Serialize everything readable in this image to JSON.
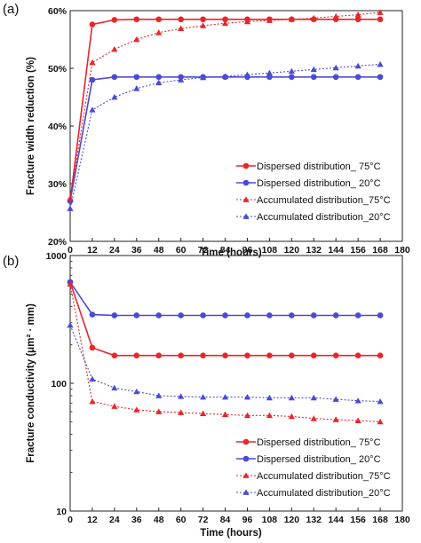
{
  "panels": [
    {
      "label": "(a)",
      "chart_data": {
        "type": "line",
        "xlabel": "Time (hours)",
        "ylabel": "Fracture width reduction (%)",
        "xlim": [
          0,
          180
        ],
        "xticks": [
          0,
          12,
          24,
          36,
          48,
          60,
          72,
          84,
          96,
          108,
          120,
          132,
          144,
          156,
          168,
          180
        ],
        "xtick_labels": [
          "0",
          "12",
          "24",
          "36",
          "48",
          "60",
          "72",
          "84",
          "96",
          "108",
          "120",
          "132",
          "144",
          "156",
          "168",
          "180"
        ],
        "ylim": [
          20,
          60
        ],
        "yscale": "linear",
        "yticks": [
          20,
          30,
          40,
          50,
          60
        ],
        "ytick_labels": [
          "20%",
          "30%",
          "40%",
          "50%",
          "60%"
        ],
        "grid": false,
        "legend_position": "bottom-right",
        "x": [
          0,
          12,
          24,
          36,
          48,
          60,
          72,
          84,
          96,
          108,
          120,
          132,
          144,
          156,
          168
        ],
        "series": [
          {
            "name": "Dispersed distribution_ 75°C",
            "color": "#e8262a",
            "style": "solid",
            "marker": "circle",
            "values": [
              27.0,
              57.6,
              58.4,
              58.5,
              58.5,
              58.5,
              58.5,
              58.5,
              58.5,
              58.5,
              58.5,
              58.5,
              58.5,
              58.5,
              58.5
            ]
          },
          {
            "name": "Dispersed distribution_ 20°C",
            "color": "#4a4ad6",
            "style": "solid",
            "marker": "circle",
            "values": [
              27.0,
              48.0,
              48.5,
              48.5,
              48.5,
              48.5,
              48.5,
              48.5,
              48.5,
              48.5,
              48.5,
              48.5,
              48.5,
              48.5,
              48.5
            ]
          },
          {
            "name": "Accumulated distribution_75°C",
            "color": "#e8262a",
            "style": "dotted",
            "marker": "triangle",
            "values": [
              27.5,
              51.0,
              53.3,
              55.0,
              56.2,
              56.9,
              57.4,
              57.8,
              58.1,
              58.3,
              58.5,
              58.7,
              59.0,
              59.3,
              59.7
            ]
          },
          {
            "name": "Accumulated distribution_20°C",
            "color": "#4a4ad6",
            "style": "dotted",
            "marker": "triangle",
            "values": [
              25.7,
              42.8,
              45.0,
              46.5,
              47.5,
              48.0,
              48.4,
              48.6,
              48.9,
              49.2,
              49.5,
              49.8,
              50.1,
              50.4,
              50.7
            ]
          }
        ]
      }
    },
    {
      "label": "(b)",
      "chart_data": {
        "type": "line",
        "xlabel": "Time (hours)",
        "ylabel": "Fracture conductivity (μm² · mm)",
        "xlim": [
          0,
          180
        ],
        "xticks": [
          0,
          12,
          24,
          36,
          48,
          60,
          72,
          84,
          96,
          108,
          120,
          132,
          144,
          156,
          168,
          180
        ],
        "xtick_labels": [
          "0",
          "12",
          "24",
          "36",
          "48",
          "60",
          "72",
          "84",
          "96",
          "108",
          "120",
          "132",
          "144",
          "156",
          "168",
          "180"
        ],
        "ylim": [
          10,
          1000
        ],
        "yscale": "log",
        "yticks": [
          10,
          100,
          1000
        ],
        "ytick_labels": [
          "10",
          "100",
          "1000"
        ],
        "grid": false,
        "legend_position": "bottom-right",
        "x": [
          0,
          12,
          24,
          36,
          48,
          60,
          72,
          84,
          96,
          108,
          120,
          132,
          144,
          156,
          168
        ],
        "series": [
          {
            "name": "Dispersed distribution_ 75°C",
            "color": "#e8262a",
            "style": "solid",
            "marker": "circle",
            "values": [
              620,
              190,
              165,
              165,
              165,
              165,
              165,
              165,
              165,
              165,
              165,
              165,
              165,
              165,
              165
            ]
          },
          {
            "name": "Dispersed distribution_ 20°C",
            "color": "#4a4ad6",
            "style": "solid",
            "marker": "circle",
            "values": [
              620,
              345,
              340,
              340,
              340,
              340,
              340,
              340,
              340,
              340,
              340,
              340,
              340,
              340,
              340
            ]
          },
          {
            "name": "Accumulated distribution_75°C",
            "color": "#e8262a",
            "style": "dotted",
            "marker": "triangle",
            "values": [
              600,
              72,
              66,
              62,
              60,
              59,
              58,
              57,
              56,
              56,
              55,
              53,
              52,
              51,
              50
            ]
          },
          {
            "name": "Accumulated distribution_20°C",
            "color": "#4a4ad6",
            "style": "dotted",
            "marker": "triangle",
            "values": [
              285,
              108,
              92,
              86,
              80,
              79,
              78,
              78,
              78,
              77,
              77,
              77,
              75,
              73,
              72
            ]
          }
        ]
      }
    }
  ]
}
